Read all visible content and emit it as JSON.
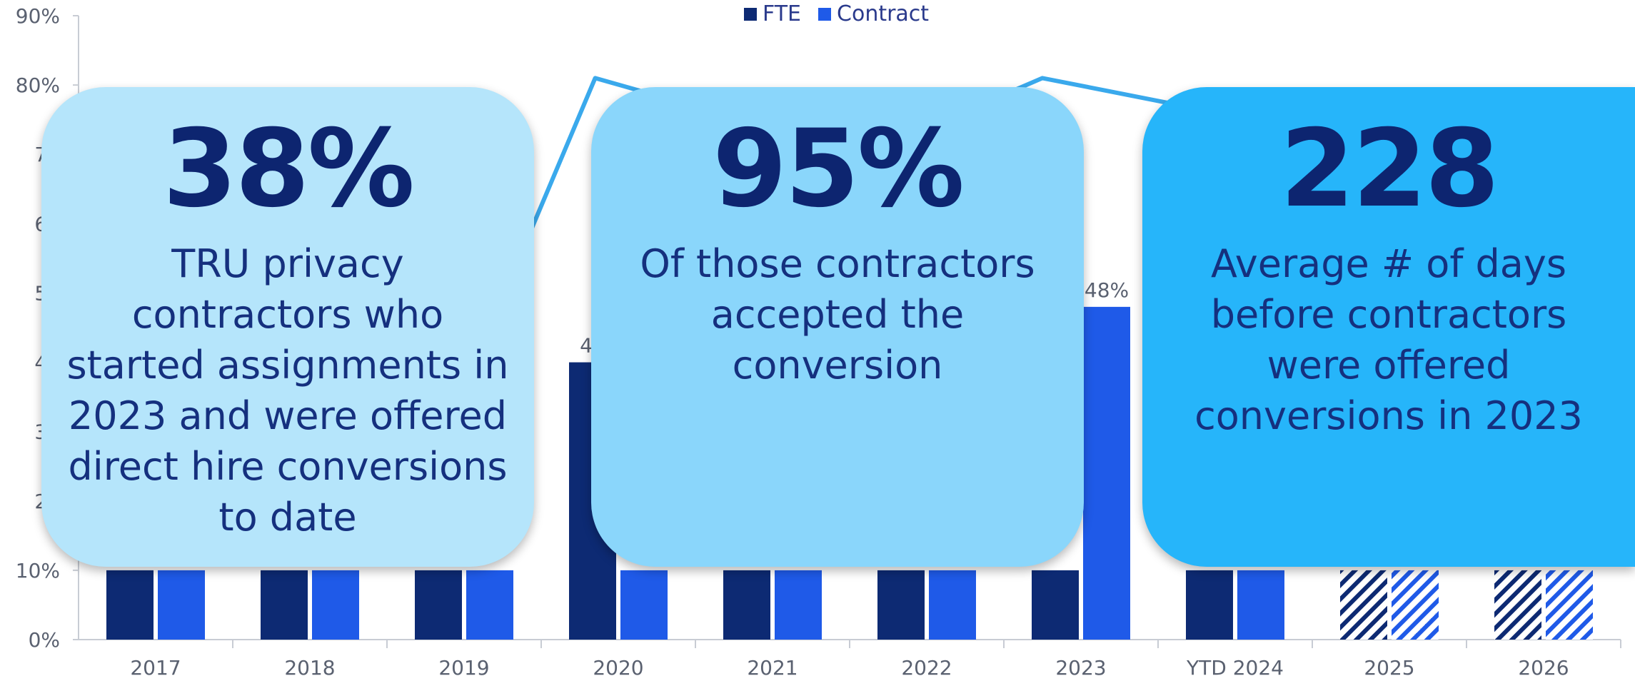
{
  "chart_data": {
    "type": "bar",
    "categories": [
      "2017",
      "2018",
      "2019",
      "2020",
      "2021",
      "2022",
      "2023",
      "YTD 2024",
      "2025",
      "2026"
    ],
    "series": [
      {
        "name": "FTE",
        "color": "#0d2a73",
        "values": [
          10,
          10,
          10,
          40,
          10,
          10,
          10,
          10,
          10,
          10
        ],
        "hatched_from_index": 8
      },
      {
        "name": "Contract",
        "color": "#1f5ae8",
        "values": [
          10,
          10,
          10,
          10,
          10,
          10,
          48,
          10,
          10,
          10
        ],
        "hatched_from_index": 8
      }
    ],
    "line": {
      "color": "#3aa9ec",
      "points": [
        [
          2.3,
          52
        ],
        [
          2.85,
          81
        ],
        [
          4.6,
          70
        ],
        [
          5.75,
          81
        ],
        [
          7.8,
          72
        ]
      ]
    },
    "data_labels": [
      {
        "category": "2020",
        "series": "FTE",
        "text": "40"
      },
      {
        "category": "2023",
        "series": "Contract",
        "text": "48%"
      }
    ],
    "y_ticks": [
      "0%",
      "10%",
      "20%",
      "30%",
      "40%",
      "50%",
      "60%",
      "70%",
      "80%",
      "90%"
    ],
    "y_visible_ticks": [
      "0%",
      "10%",
      "20",
      "30",
      "40",
      "50",
      "60",
      "70",
      "80%",
      "90%"
    ],
    "ylim": [
      0,
      90
    ],
    "legend_position": "top-center",
    "grid": false
  },
  "legend": {
    "fte": "FTE",
    "contract": "Contract"
  },
  "cards": [
    {
      "big": "38%",
      "text": "TRU privacy contractors who started assignments in 2023 and were offered direct hire conversions to date",
      "bg": "#b5e5fb"
    },
    {
      "big": "95%",
      "text": "Of those contractors accepted the conversion",
      "bg": "#8ad6fb"
    },
    {
      "big": "228",
      "text": "Average # of days before contractors were offered conversions in 2023",
      "bg": "#26b5fa"
    }
  ]
}
